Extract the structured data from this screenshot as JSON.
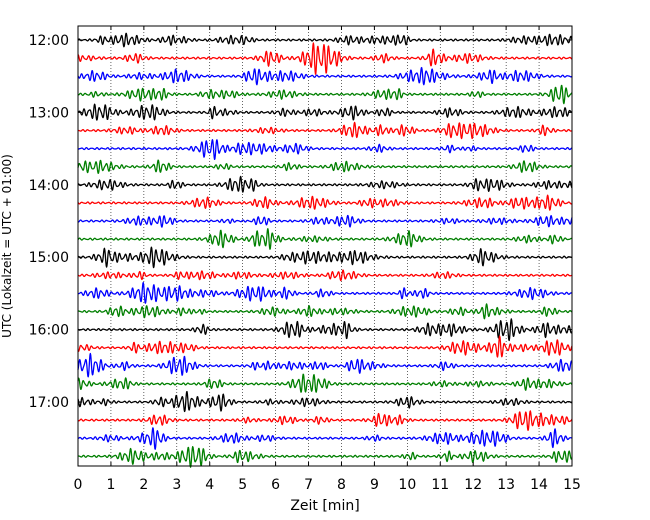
{
  "chart_data": {
    "type": "line",
    "title": "",
    "xlabel": "Zeit  [min]",
    "ylabel": "UTC (Lokalzeit = UTC + 01:00)",
    "xlim": [
      0,
      15
    ],
    "x_ticks": [
      "0",
      "1",
      "2",
      "3",
      "4",
      "5",
      "6",
      "7",
      "8",
      "9",
      "10",
      "11",
      "12",
      "13",
      "14",
      "15"
    ],
    "y_tick_labels": [
      "12:00",
      "13:00",
      "14:00",
      "15:00",
      "16:00",
      "17:00"
    ],
    "start_hour": 12,
    "trace_minutes": 15,
    "trace_count": 24,
    "trace_colors": [
      "#000000",
      "#ff0000",
      "#0000ff",
      "#007f00"
    ],
    "grid": "vertical dotted",
    "series": [
      {
        "name": "12:00",
        "color": "#000000"
      },
      {
        "name": "12:15",
        "color": "#ff0000"
      },
      {
        "name": "12:30",
        "color": "#0000ff"
      },
      {
        "name": "12:45",
        "color": "#007f00"
      },
      {
        "name": "13:00",
        "color": "#000000"
      },
      {
        "name": "13:15",
        "color": "#ff0000"
      },
      {
        "name": "13:30",
        "color": "#0000ff"
      },
      {
        "name": "13:45",
        "color": "#007f00"
      },
      {
        "name": "14:00",
        "color": "#000000"
      },
      {
        "name": "14:15",
        "color": "#ff0000"
      },
      {
        "name": "14:30",
        "color": "#0000ff"
      },
      {
        "name": "14:45",
        "color": "#007f00"
      },
      {
        "name": "15:00",
        "color": "#000000"
      },
      {
        "name": "15:15",
        "color": "#ff0000"
      },
      {
        "name": "15:30",
        "color": "#0000ff"
      },
      {
        "name": "15:45",
        "color": "#007f00"
      },
      {
        "name": "16:00",
        "color": "#000000"
      },
      {
        "name": "16:15",
        "color": "#ff0000"
      },
      {
        "name": "16:30",
        "color": "#0000ff"
      },
      {
        "name": "16:45",
        "color": "#007f00"
      },
      {
        "name": "17:00",
        "color": "#000000"
      },
      {
        "name": "17:15",
        "color": "#ff0000"
      },
      {
        "name": "17:30",
        "color": "#0000ff"
      },
      {
        "name": "17:45",
        "color": "#007f00"
      }
    ]
  }
}
